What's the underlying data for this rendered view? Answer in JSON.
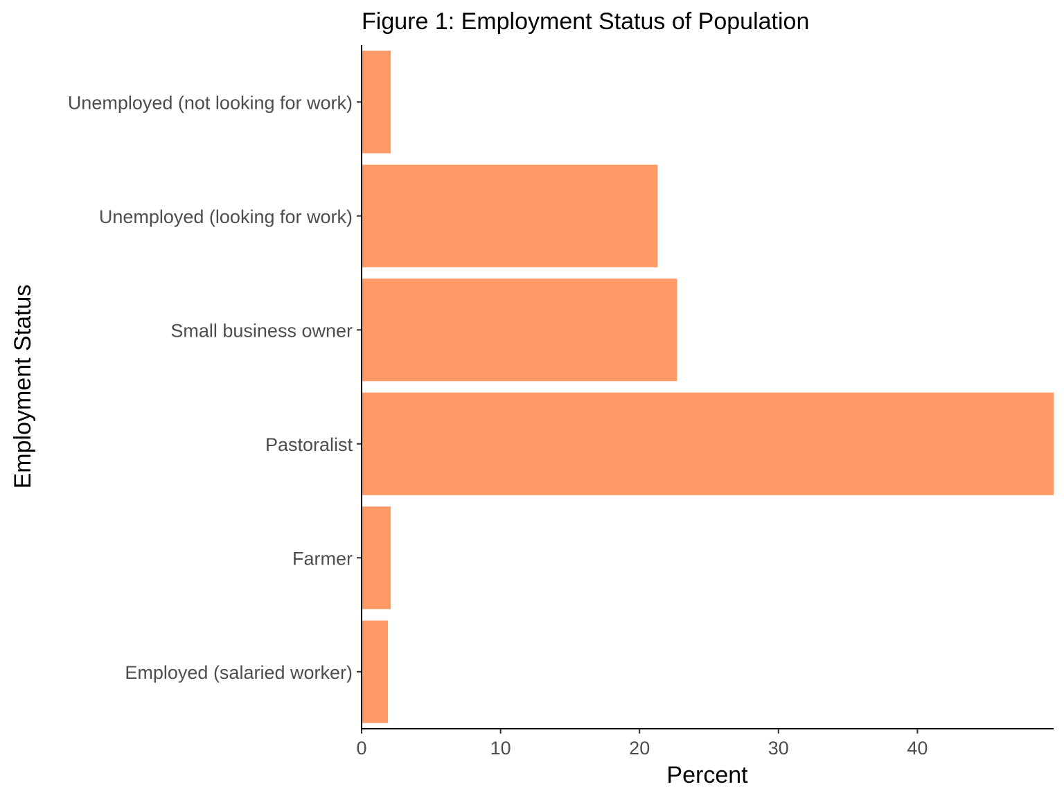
{
  "chart_data": {
    "type": "bar",
    "orientation": "horizontal",
    "title": "Figure 1: Employment Status of Population",
    "xlabel": "Percent",
    "ylabel": "Employment Status",
    "categories": [
      "Employed (salaried worker)",
      "Farmer",
      "Pastoralist",
      "Small business owner",
      "Unemployed (looking for work)",
      "Unemployed (not looking for work)"
    ],
    "values": [
      1.9,
      2.1,
      49.8,
      22.7,
      21.3,
      2.1
    ],
    "xlim": [
      0,
      49.8
    ],
    "xticks": [
      0,
      10,
      20,
      30,
      40
    ],
    "bar_color": "#FF9966",
    "grid": false,
    "legend": "none"
  }
}
